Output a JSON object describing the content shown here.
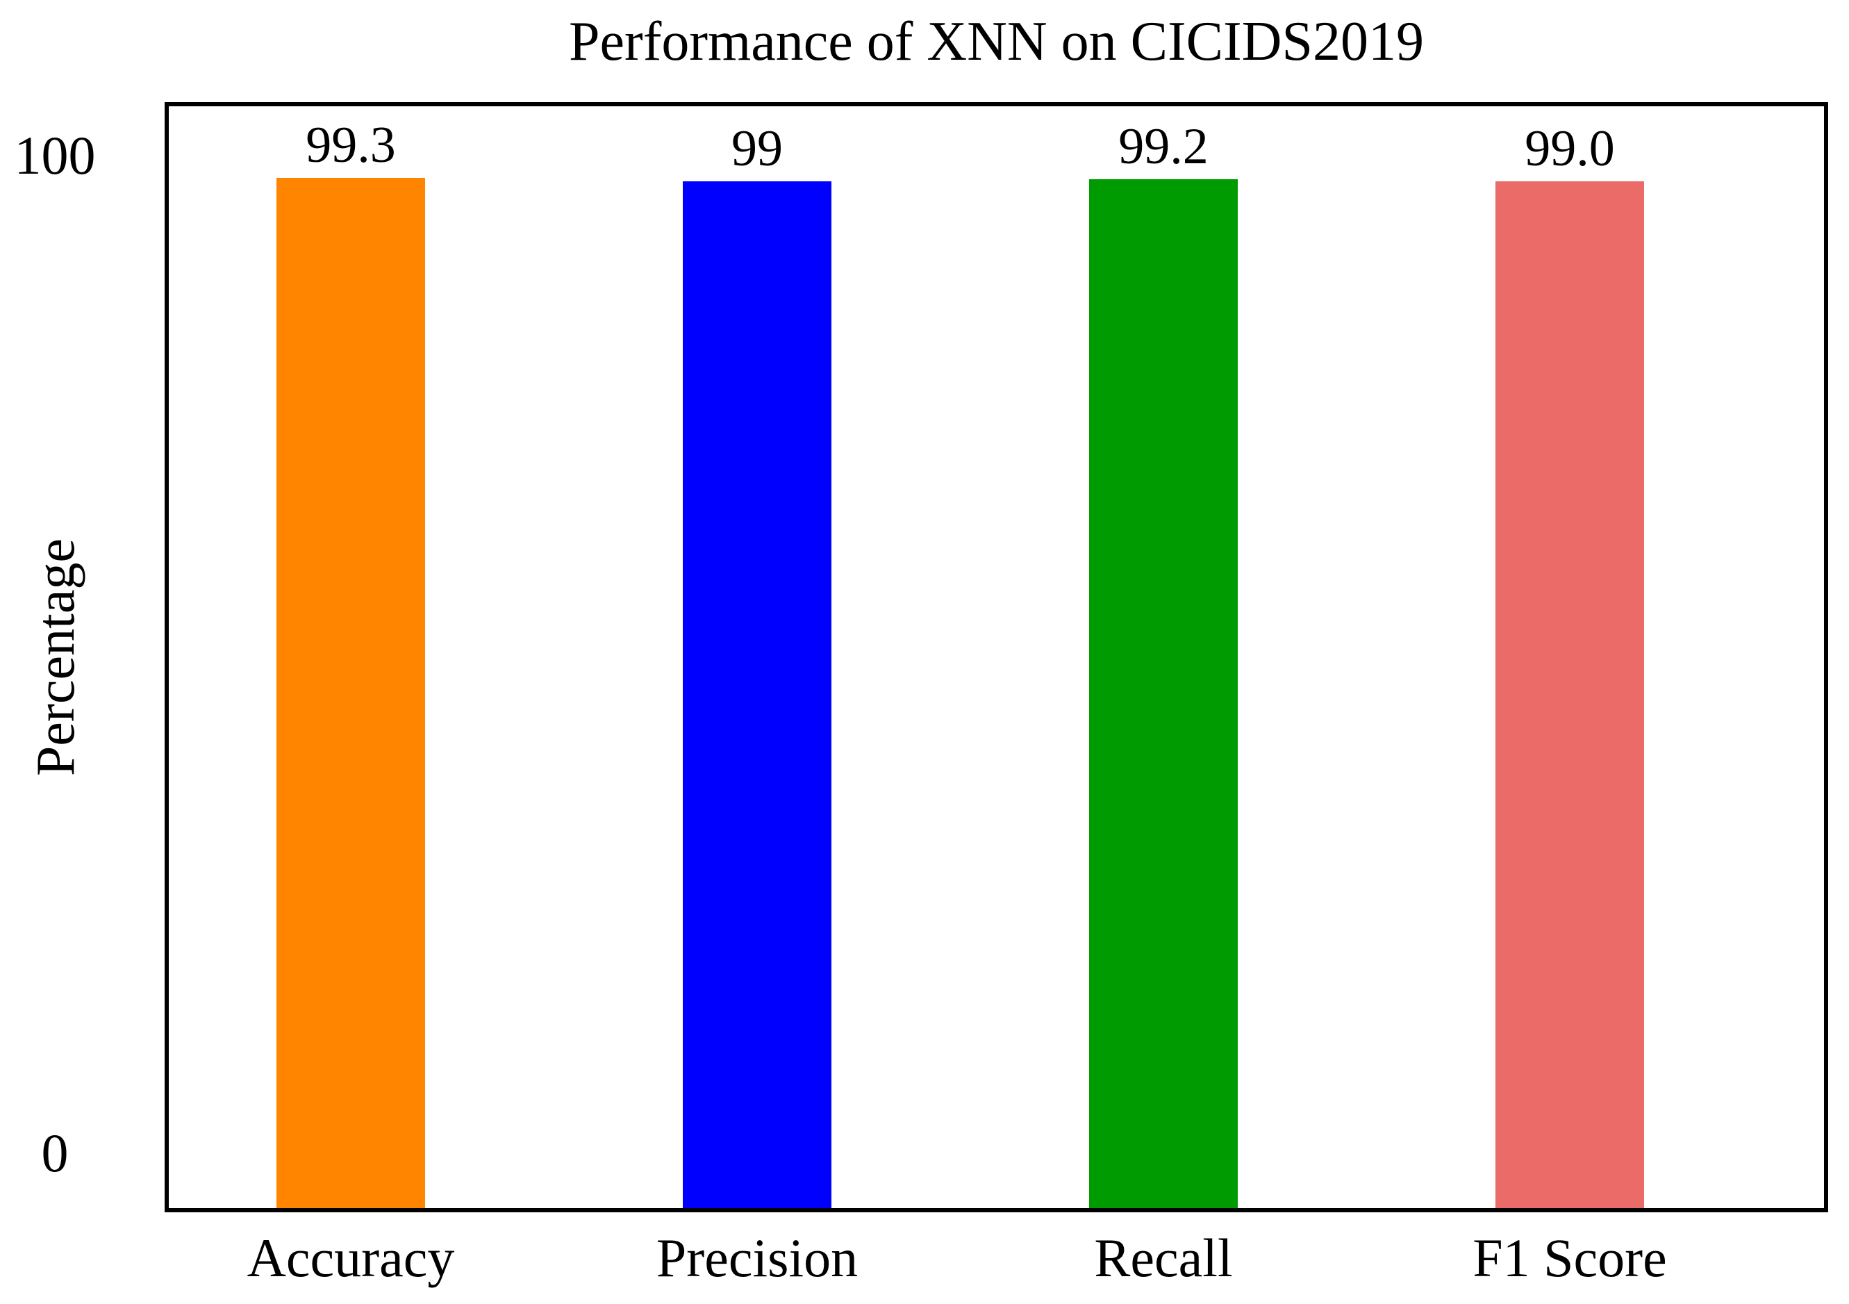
{
  "chart_data": {
    "type": "bar",
    "title": "Performance of XNN on CICIDS2019",
    "xlabel": "",
    "ylabel": "Percentage",
    "categories": [
      "Accuracy",
      "Precision",
      "Recall",
      "F1 Score"
    ],
    "values": [
      99.3,
      99,
      99.2,
      99.0
    ],
    "value_labels": [
      "99.3",
      "99",
      "99.2",
      "99.0"
    ],
    "bar_colors": [
      "#FF8400",
      "#0000FF",
      "#009B00",
      "#EA6B68"
    ],
    "ylim": [
      0,
      100
    ],
    "yticks": [
      {
        "label": "100",
        "value": 100
      },
      {
        "label": "0",
        "value": 0
      }
    ],
    "grid": false,
    "legend": "none",
    "frame": "full-box",
    "axis_color": "#000000"
  }
}
